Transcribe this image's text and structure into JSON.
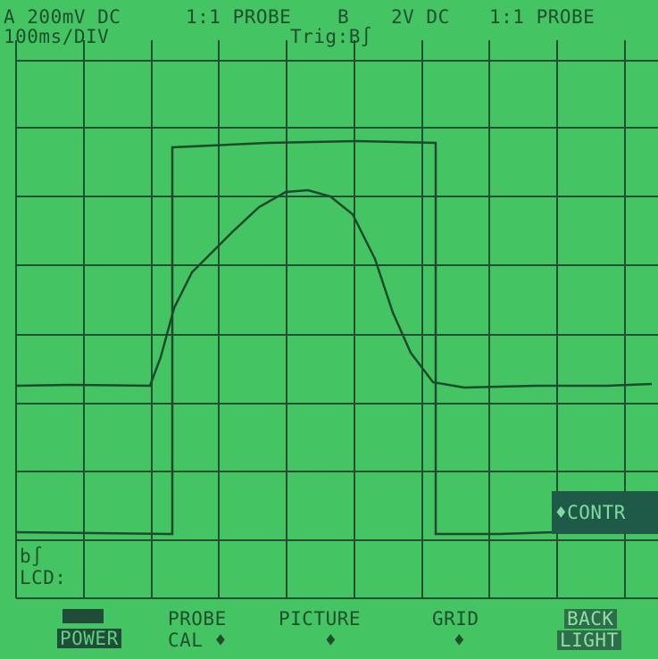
{
  "header": {
    "channel_a": "A 200mV DC",
    "probe_a": "1:1 PROBE",
    "channel_b": "B",
    "volts_b": "2V DC",
    "probe_b": "1:1 PROBE",
    "timebase": "100ms/DIV",
    "trigger": "Trig:B∫"
  },
  "status": {
    "trigger_marker": "b∫",
    "lcd": "LCD:",
    "contrast": "♦CONTR"
  },
  "menu": [
    {
      "bottom": "POWER"
    },
    {
      "top": "PROBE",
      "bottom": "CAL ♦"
    },
    {
      "top": "PICTURE",
      "bottom": "♦"
    },
    {
      "top": "GRID",
      "bottom": "♦"
    },
    {
      "top": "BACK",
      "bottom": "LIGHT"
    }
  ]
}
